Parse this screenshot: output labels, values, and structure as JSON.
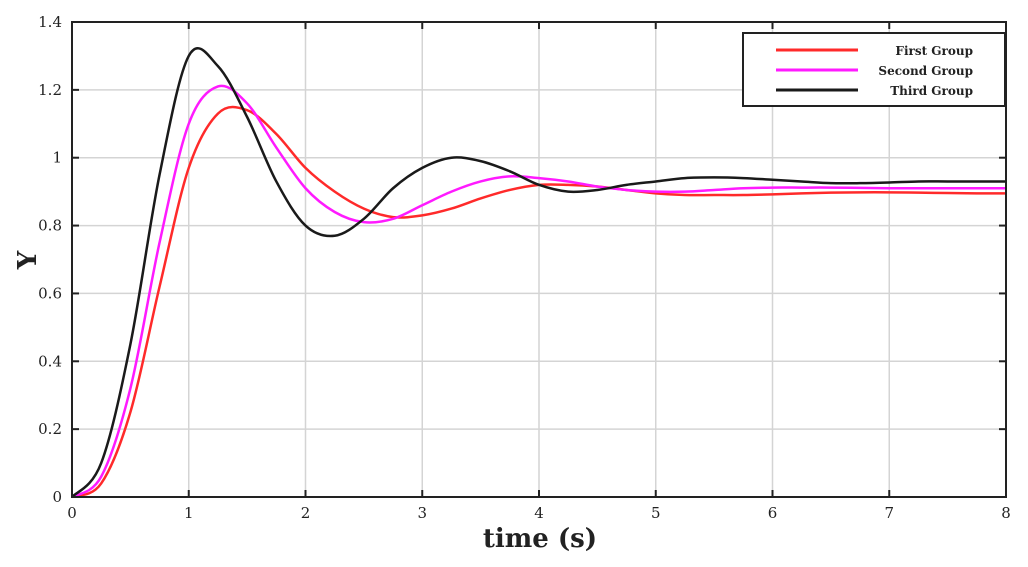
{
  "chart_data": {
    "type": "line",
    "title": "",
    "xlabel": "time (s)",
    "ylabel": "Y",
    "xlim": [
      0,
      8
    ],
    "ylim": [
      0,
      1.4
    ],
    "xticks": [
      "0",
      "1",
      "2",
      "3",
      "4",
      "5",
      "6",
      "7",
      "8"
    ],
    "yticks": [
      "0",
      "0.2",
      "0.4",
      "0.6",
      "0.8",
      "1",
      "1.2",
      "1.4"
    ],
    "grid": true,
    "legend_position": "top-right",
    "x": [
      0,
      0.25,
      0.5,
      0.75,
      1,
      1.25,
      1.5,
      1.75,
      2,
      2.25,
      2.5,
      2.75,
      3,
      3.25,
      3.5,
      3.75,
      4,
      4.25,
      4.5,
      4.75,
      5,
      5.25,
      5.5,
      5.75,
      6,
      6.25,
      6.5,
      6.75,
      7,
      7.25,
      7.5,
      7.75,
      8
    ],
    "series": [
      {
        "name": "First Group",
        "color": "#ff2a2a",
        "values": [
          0,
          0.04,
          0.25,
          0.62,
          0.97,
          1.13,
          1.14,
          1.07,
          0.97,
          0.9,
          0.85,
          0.825,
          0.83,
          0.85,
          0.88,
          0.905,
          0.92,
          0.92,
          0.915,
          0.905,
          0.895,
          0.89,
          0.89,
          0.89,
          0.892,
          0.895,
          0.897,
          0.898,
          0.898,
          0.897,
          0.896,
          0.895,
          0.895
        ]
      },
      {
        "name": "Second Group",
        "color": "#ff1aff",
        "values": [
          0,
          0.06,
          0.32,
          0.75,
          1.1,
          1.21,
          1.16,
          1.03,
          0.91,
          0.84,
          0.81,
          0.82,
          0.86,
          0.9,
          0.93,
          0.945,
          0.94,
          0.93,
          0.915,
          0.905,
          0.9,
          0.9,
          0.905,
          0.91,
          0.912,
          0.912,
          0.912,
          0.911,
          0.91,
          0.91,
          0.91,
          0.91,
          0.91
        ]
      },
      {
        "name": "Third Group",
        "color": "#1a1a1a",
        "values": [
          0,
          0.1,
          0.45,
          0.95,
          1.3,
          1.27,
          1.12,
          0.93,
          0.8,
          0.77,
          0.82,
          0.91,
          0.97,
          1.0,
          0.99,
          0.96,
          0.92,
          0.9,
          0.905,
          0.92,
          0.93,
          0.94,
          0.942,
          0.94,
          0.935,
          0.93,
          0.925,
          0.925,
          0.927,
          0.93,
          0.93,
          0.93,
          0.93
        ]
      }
    ]
  }
}
